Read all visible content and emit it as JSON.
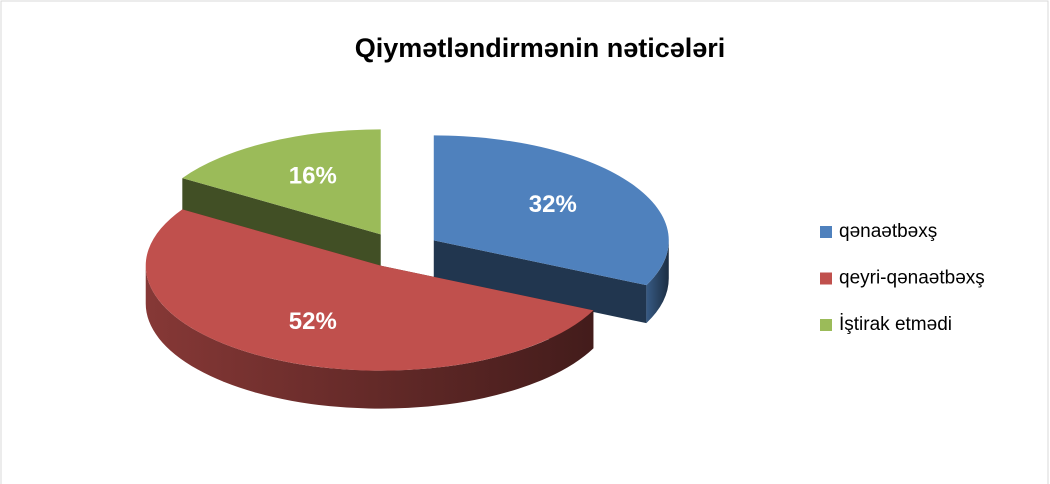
{
  "chart_data": {
    "type": "pie",
    "title": "Qiymətləndirmənin nəticələri",
    "categories": [
      "qənaətbəxş",
      "qeyri-qənaətbəxş",
      "İştirak etmədi"
    ],
    "values": [
      32,
      52,
      16
    ],
    "value_labels": [
      "32%",
      "52%",
      "16%"
    ],
    "colors": [
      "#4f81bd",
      "#c0504d",
      "#9bbb59"
    ],
    "legend": "right"
  }
}
